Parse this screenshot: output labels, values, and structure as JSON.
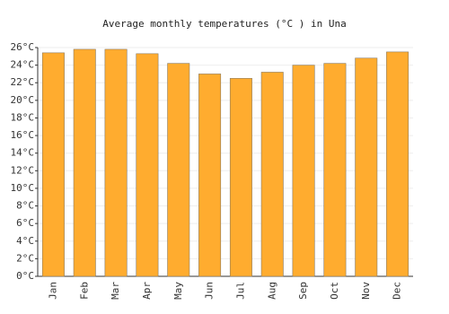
{
  "chart_data": {
    "type": "bar",
    "title": "Average monthly temperatures (°C ) in Una",
    "categories": [
      "Jan",
      "Feb",
      "Mar",
      "Apr",
      "May",
      "Jun",
      "Jul",
      "Aug",
      "Sep",
      "Oct",
      "Nov",
      "Dec"
    ],
    "values": [
      25.4,
      25.8,
      25.8,
      25.3,
      24.2,
      23.0,
      22.5,
      23.2,
      24.0,
      24.2,
      24.8,
      25.5
    ],
    "color": "#ffac2f",
    "ylim": [
      0,
      26
    ],
    "yticks": [
      {
        "value": 0,
        "label": "0°C"
      },
      {
        "value": 2,
        "label": "2°C"
      },
      {
        "value": 4,
        "label": "4°C"
      },
      {
        "value": 6,
        "label": "6°C"
      },
      {
        "value": 8,
        "label": "8°C"
      },
      {
        "value": 10,
        "label": "10°C"
      },
      {
        "value": 12,
        "label": "12°C"
      },
      {
        "value": 14,
        "label": "14°C"
      },
      {
        "value": 16,
        "label": "16°C"
      },
      {
        "value": 18,
        "label": "18°C"
      },
      {
        "value": 20,
        "label": "20°C"
      },
      {
        "value": 22,
        "label": "22°C"
      },
      {
        "value": 24,
        "label": "24°C"
      },
      {
        "value": 26,
        "label": "26°C"
      }
    ],
    "grid": true
  }
}
